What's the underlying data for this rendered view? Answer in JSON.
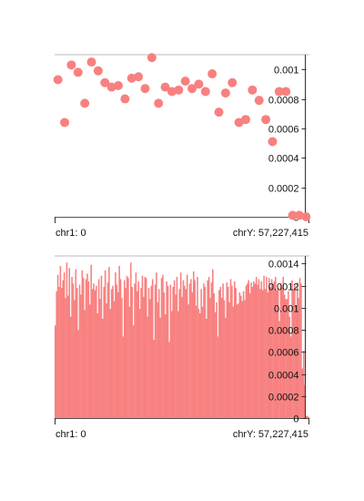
{
  "chart_data": [
    {
      "type": "scatter",
      "title": "",
      "x_start_label": "chr1: 0",
      "x_end_label": "chrY: 57,227,415",
      "y_ticks": [
        "0",
        "0.0002",
        "0.0004",
        "0.0006",
        "0.0008",
        "0.001"
      ],
      "ylim": [
        0,
        0.0011
      ],
      "color": "#F88080",
      "grid": false,
      "values": [
        0.00093,
        0.00064,
        0.00103,
        0.00098,
        0.00077,
        0.00105,
        0.00099,
        0.00091,
        0.00088,
        0.00089,
        0.0008,
        0.00094,
        0.00095,
        0.00087,
        0.00108,
        0.00077,
        0.00088,
        0.00085,
        0.00086,
        0.00092,
        0.00087,
        0.0009,
        0.00085,
        0.00097,
        0.00071,
        0.00084,
        0.00091,
        0.00064,
        0.00066,
        0.00086,
        0.00079,
        0.00066,
        0.00051,
        0.00085,
        0.00085,
        1e-05,
        1e-05,
        0.0
      ]
    },
    {
      "type": "bar",
      "title": "",
      "x_start_label": "chr1: 0",
      "x_end_label": "chrY: 57,227,415",
      "y_ticks": [
        "0",
        "0.0002",
        "0.0004",
        "0.0006",
        "0.0008",
        "0.001",
        "0.0012",
        "0.0014"
      ],
      "ylim": [
        0,
        0.00147
      ],
      "color": "#F88080",
      "grid": false,
      "values": [
        0.00084,
        0.00115,
        0.0013,
        0.00119,
        0.00138,
        0.00118,
        0.00125,
        0.00132,
        0.00109,
        0.00141,
        0.00111,
        0.00136,
        0.00092,
        0.00128,
        0.00122,
        0.00107,
        0.00135,
        0.00118,
        0.0008,
        0.00121,
        0.00112,
        0.00134,
        0.00127,
        0.00098,
        0.00126,
        0.00131,
        0.00124,
        0.00103,
        0.00139,
        0.00117,
        0.00122,
        0.00116,
        0.0012,
        0.00095,
        0.00126,
        0.00108,
        0.00129,
        0.0009,
        0.00119,
        0.00134,
        0.00104,
        0.00123,
        0.00137,
        0.00099,
        0.00117,
        0.0012,
        0.00106,
        0.00132,
        0.00121,
        0.00114,
        0.00138,
        0.00126,
        0.00109,
        0.00074,
        0.00125,
        0.00118,
        0.00129,
        0.00127,
        0.00101,
        0.00141,
        0.00119,
        0.00084,
        0.00122,
        0.00132,
        0.00115,
        0.00124,
        0.00099,
        0.00118,
        0.00129,
        0.0011,
        0.00128,
        0.00127,
        0.00092,
        0.00118,
        0.00108,
        0.0012,
        0.00126,
        0.00071,
        0.00121,
        0.00132,
        0.00105,
        0.00117,
        0.00091,
        0.00127,
        0.0013,
        0.00114,
        0.00094,
        0.00124,
        0.0012,
        0.00069,
        0.00121,
        0.00097,
        0.00119,
        0.00125,
        0.00112,
        0.00128,
        0.00097,
        0.00117,
        0.00132,
        0.0011,
        0.00125,
        0.0012,
        0.00117,
        0.0013,
        0.00103,
        0.00122,
        0.00126,
        0.00114,
        0.00133,
        0.00125,
        0.00102,
        0.00128,
        0.00099,
        0.00095,
        0.00117,
        0.00101,
        0.00122,
        0.00119,
        0.0009,
        0.00125,
        0.00128,
        0.00109,
        0.00123,
        0.00135,
        0.00113,
        0.00096,
        0.00105,
        0.00074,
        0.00116,
        0.00119,
        0.00109,
        0.00122,
        0.00107,
        0.00091,
        0.00123,
        0.00119,
        0.00105,
        0.00126,
        0.0012,
        0.00101,
        0.00124,
        0.00118,
        0.00103,
        0.00104,
        0.00114,
        0.00111,
        0.00106,
        0.00115,
        0.00107,
        0.0012,
        0.00122,
        0.00125,
        0.00113,
        0.00123,
        0.00119,
        0.00124,
        0.00122,
        0.00128,
        0.00121,
        0.00126,
        0.00117,
        0.00124,
        0.00116,
        0.00129,
        0.00117,
        0.00128,
        0.00114,
        0.00127,
        0.00119,
        0.00126,
        0.00122,
        0.00124,
        0.00128,
        0.00116,
        0.00118,
        0.00088,
        0.00122,
        0.00118,
        0.00128,
        0.00112,
        0.00108,
        0.00108,
        0.00115,
        0.00092,
        0.00074,
        0.00125,
        0.00117,
        0.00121,
        0.00102,
        0.00123,
        0.00109,
        0.00127,
        0.00122,
        0.00045,
        0.00061,
        0.0003,
        2e-05,
        2e-05,
        1e-05
      ]
    }
  ]
}
